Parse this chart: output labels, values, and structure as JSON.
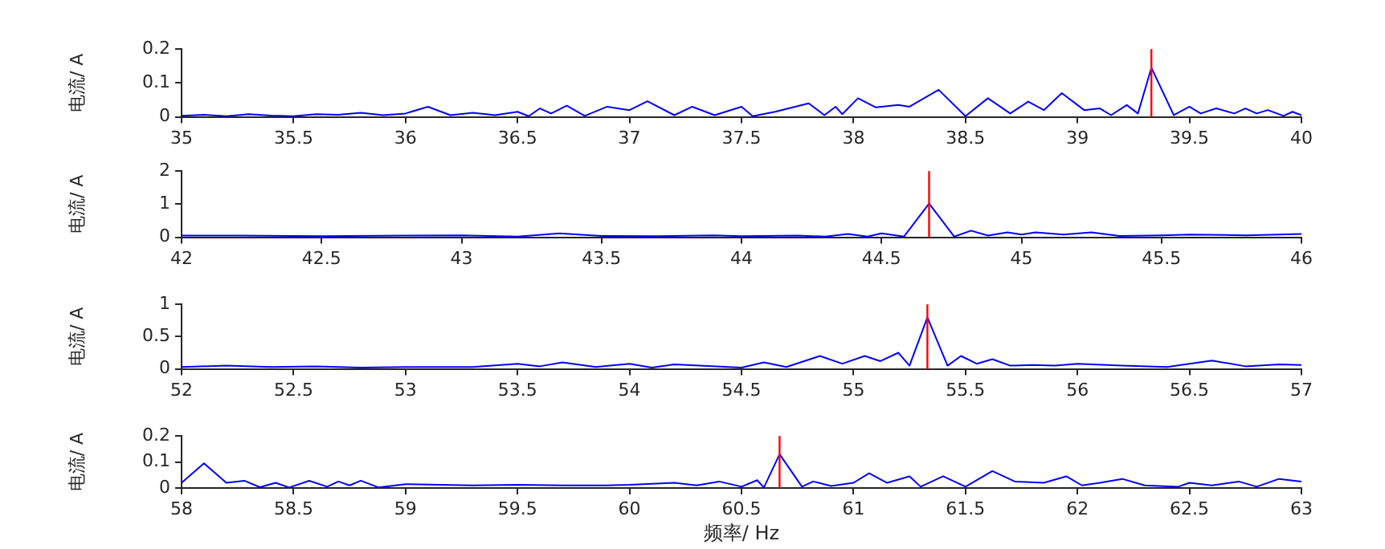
{
  "chart_data": [
    {
      "type": "line",
      "ylabel": "电流/ A",
      "xlim": [
        35,
        40
      ],
      "xticks": [
        35,
        35.5,
        36,
        36.5,
        37,
        37.5,
        38,
        38.5,
        39,
        39.5,
        40
      ],
      "ylim": [
        0,
        0.2
      ],
      "yticks": [
        0,
        0.1,
        0.2
      ],
      "grid": false,
      "legend": false,
      "tick_labels": true,
      "x": [
        35,
        35.1,
        35.2,
        35.3,
        35.4,
        35.5,
        35.6,
        35.7,
        35.8,
        35.9,
        36,
        36.1,
        36.2,
        36.3,
        36.4,
        36.5,
        36.55,
        36.6,
        36.65,
        36.72,
        36.8,
        36.9,
        37,
        37.08,
        37.2,
        37.28,
        37.38,
        37.5,
        37.55,
        37.65,
        37.8,
        37.87,
        37.92,
        37.95,
        38.02,
        38.1,
        38.2,
        38.25,
        38.38,
        38.5,
        38.6,
        38.7,
        38.78,
        38.85,
        38.93,
        39.03,
        39.1,
        39.15,
        39.22,
        39.27,
        39.33,
        39.43,
        39.5,
        39.55,
        39.62,
        39.7,
        39.75,
        39.8,
        39.85,
        39.92,
        39.96,
        40
      ],
      "series": [
        {
          "color": "#0000ff",
          "values": [
            0.003,
            0.006,
            0.002,
            0.008,
            0.004,
            0.002,
            0.008,
            0.006,
            0.012,
            0.005,
            0.01,
            0.03,
            0.005,
            0.012,
            0.005,
            0.015,
            0.002,
            0.025,
            0.01,
            0.033,
            0.003,
            0.03,
            0.02,
            0.046,
            0.005,
            0.03,
            0.005,
            0.03,
            0.002,
            0.015,
            0.04,
            0.005,
            0.03,
            0.008,
            0.055,
            0.028,
            0.035,
            0.03,
            0.08,
            0.002,
            0.055,
            0.01,
            0.045,
            0.02,
            0.07,
            0.02,
            0.025,
            0.005,
            0.035,
            0.01,
            0.145,
            0.005,
            0.03,
            0.01,
            0.025,
            0.01,
            0.025,
            0.01,
            0.02,
            0.003,
            0.015,
            0.005
          ]
        }
      ],
      "ref_lines": [
        {
          "axis": "x",
          "value": 39.33,
          "color": "#ff0000"
        }
      ]
    },
    {
      "type": "line",
      "ylabel": "电流/ A",
      "xlim": [
        42,
        46
      ],
      "xticks": [
        42,
        42.5,
        43,
        43.5,
        44,
        44.5,
        45,
        45.5,
        46
      ],
      "ylim": [
        0,
        2
      ],
      "yticks": [
        0,
        1,
        2
      ],
      "grid": false,
      "legend": false,
      "tick_labels": true,
      "x": [
        42,
        42.2,
        42.5,
        42.8,
        43,
        43.2,
        43.35,
        43.5,
        43.7,
        43.9,
        44,
        44.2,
        44.3,
        44.38,
        44.45,
        44.5,
        44.58,
        44.67,
        44.76,
        44.82,
        44.88,
        44.95,
        45,
        45.05,
        45.15,
        45.25,
        45.35,
        45.5,
        45.6,
        45.8,
        46
      ],
      "series": [
        {
          "color": "#0000ff",
          "values": [
            0.05,
            0.05,
            0.03,
            0.05,
            0.06,
            0.02,
            0.12,
            0.04,
            0.03,
            0.06,
            0.03,
            0.05,
            0.02,
            0.1,
            0.02,
            0.12,
            0.02,
            1.02,
            0.02,
            0.2,
            0.05,
            0.15,
            0.08,
            0.15,
            0.08,
            0.15,
            0.04,
            0.06,
            0.08,
            0.06,
            0.1
          ]
        }
      ],
      "ref_lines": [
        {
          "axis": "x",
          "value": 44.67,
          "color": "#ff0000"
        }
      ]
    },
    {
      "type": "line",
      "ylabel": "电流/ A",
      "xlim": [
        52,
        57
      ],
      "xticks": [
        52,
        52.5,
        53,
        53.5,
        54,
        54.5,
        55,
        55.5,
        56,
        56.5,
        57
      ],
      "ylim": [
        0,
        1
      ],
      "yticks": [
        0,
        0.5,
        1
      ],
      "grid": false,
      "legend": false,
      "tick_labels": true,
      "x": [
        52,
        52.2,
        52.4,
        52.6,
        52.8,
        53,
        53.3,
        53.5,
        53.6,
        53.7,
        53.85,
        54,
        54.1,
        54.2,
        54.5,
        54.6,
        54.7,
        54.85,
        54.95,
        55.05,
        55.12,
        55.2,
        55.25,
        55.33,
        55.42,
        55.48,
        55.55,
        55.62,
        55.7,
        55.8,
        55.9,
        56,
        56.2,
        56.4,
        56.5,
        56.6,
        56.75,
        56.9,
        57
      ],
      "series": [
        {
          "color": "#0000ff",
          "values": [
            0.03,
            0.05,
            0.03,
            0.04,
            0.02,
            0.03,
            0.03,
            0.08,
            0.04,
            0.1,
            0.03,
            0.08,
            0.02,
            0.07,
            0.02,
            0.1,
            0.03,
            0.2,
            0.08,
            0.2,
            0.12,
            0.25,
            0.05,
            0.8,
            0.05,
            0.2,
            0.08,
            0.15,
            0.05,
            0.06,
            0.05,
            0.08,
            0.05,
            0.03,
            0.08,
            0.13,
            0.04,
            0.07,
            0.06
          ]
        }
      ],
      "ref_lines": [
        {
          "axis": "x",
          "value": 55.33,
          "color": "#ff0000"
        }
      ]
    },
    {
      "type": "line",
      "ylabel": "电流/ A",
      "xlabel": "频率/ Hz",
      "xlim": [
        58,
        63
      ],
      "xticks": [
        58,
        58.5,
        59,
        59.5,
        60,
        60.5,
        61,
        61.5,
        62,
        62.5,
        63
      ],
      "ylim": [
        0,
        0.2
      ],
      "yticks": [
        0,
        0.1,
        0.2
      ],
      "grid": false,
      "legend": false,
      "tick_labels": true,
      "x": [
        58,
        58.1,
        58.2,
        58.28,
        58.35,
        58.42,
        58.48,
        58.57,
        58.65,
        58.7,
        58.75,
        58.8,
        58.88,
        59,
        59.3,
        59.5,
        59.7,
        59.9,
        60,
        60.2,
        60.3,
        60.4,
        60.5,
        60.57,
        60.6,
        60.67,
        60.77,
        60.82,
        60.9,
        61,
        61.07,
        61.15,
        61.25,
        61.3,
        61.4,
        61.5,
        61.62,
        61.72,
        61.85,
        61.95,
        62.02,
        62.1,
        62.2,
        62.3,
        62.45,
        62.5,
        62.6,
        62.72,
        62.8,
        62.9,
        63
      ],
      "series": [
        {
          "color": "#0000ff",
          "values": [
            0.02,
            0.095,
            0.02,
            0.028,
            0.003,
            0.02,
            0.002,
            0.028,
            0.005,
            0.025,
            0.01,
            0.028,
            0.002,
            0.015,
            0.01,
            0.012,
            0.01,
            0.01,
            0.012,
            0.02,
            0.01,
            0.025,
            0.005,
            0.03,
            0.002,
            0.13,
            0.005,
            0.025,
            0.008,
            0.02,
            0.057,
            0.02,
            0.045,
            0.005,
            0.045,
            0.005,
            0.065,
            0.025,
            0.02,
            0.045,
            0.01,
            0.02,
            0.035,
            0.01,
            0.005,
            0.02,
            0.01,
            0.025,
            0.005,
            0.035,
            0.025
          ]
        }
      ],
      "ref_lines": [
        {
          "axis": "x",
          "value": 60.67,
          "color": "#ff0000"
        }
      ]
    }
  ]
}
